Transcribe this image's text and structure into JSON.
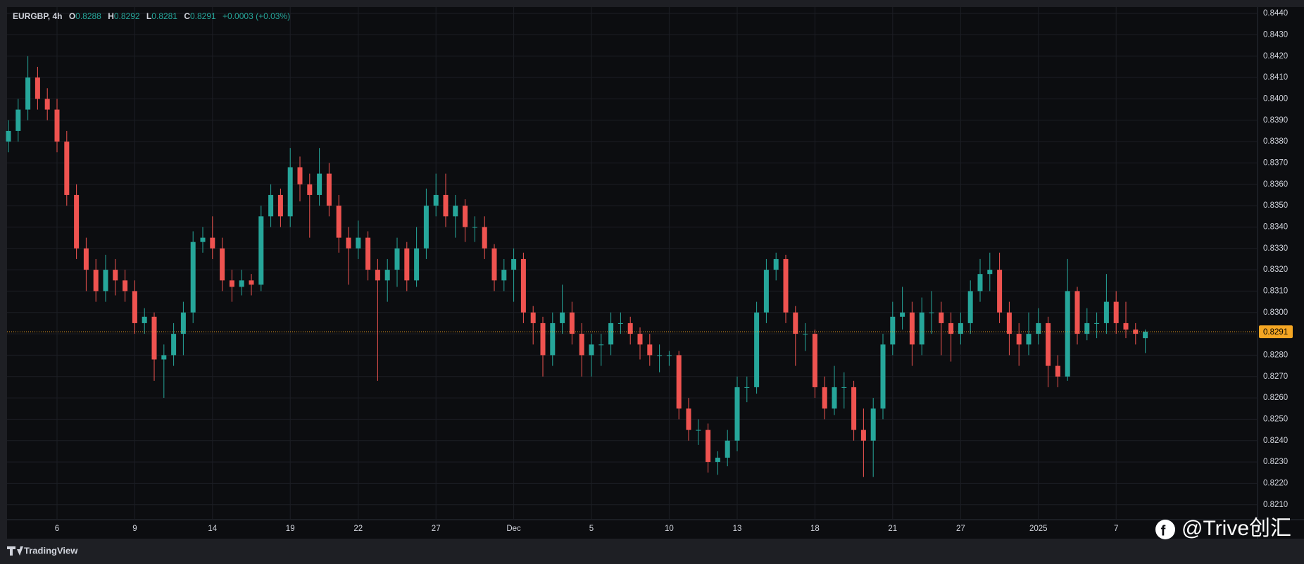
{
  "chart_data": {
    "type": "candlestick",
    "title": "EURGBP, 4h",
    "ohlc": [
      {
        "label": "O",
        "value": 0.8288
      },
      {
        "label": "H",
        "value": 0.8292
      },
      {
        "label": "L",
        "value": 0.8281
      },
      {
        "label": "C",
        "value": 0.8291
      }
    ],
    "change": "+0.0003 (+0.03%)",
    "up_color": "#26a69a",
    "down_color": "#ef5350",
    "grid": true,
    "last_price": 0.8291,
    "last_price_color": "#f5a623",
    "ylim": [
      0.8203,
      0.8443
    ],
    "yticks": [
      {
        "value": 0.821,
        "label": "0.8210"
      },
      {
        "value": 0.822,
        "label": "0.8220"
      },
      {
        "value": 0.823,
        "label": "0.8230"
      },
      {
        "value": 0.824,
        "label": "0.8240"
      },
      {
        "value": 0.825,
        "label": "0.8250"
      },
      {
        "value": 0.826,
        "label": "0.8260"
      },
      {
        "value": 0.827,
        "label": "0.8270"
      },
      {
        "value": 0.828,
        "label": "0.8280"
      },
      {
        "value": 0.829,
        "label": "0.8290"
      },
      {
        "value": 0.83,
        "label": "0.8300"
      },
      {
        "value": 0.831,
        "label": "0.8310"
      },
      {
        "value": 0.832,
        "label": "0.8320"
      },
      {
        "value": 0.833,
        "label": "0.8330"
      },
      {
        "value": 0.834,
        "label": "0.8340"
      },
      {
        "value": 0.835,
        "label": "0.8350"
      },
      {
        "value": 0.836,
        "label": "0.8360"
      },
      {
        "value": 0.837,
        "label": "0.8370"
      },
      {
        "value": 0.838,
        "label": "0.8380"
      },
      {
        "value": 0.839,
        "label": "0.8390"
      },
      {
        "value": 0.84,
        "label": "0.8400"
      },
      {
        "value": 0.841,
        "label": "0.8410"
      },
      {
        "value": 0.842,
        "label": "0.8420"
      },
      {
        "value": 0.843,
        "label": "0.8430"
      },
      {
        "value": 0.844,
        "label": "0.8440"
      }
    ],
    "xticks": [
      {
        "value": 5,
        "label": "6"
      },
      {
        "value": 13,
        "label": "9"
      },
      {
        "value": 21,
        "label": "14"
      },
      {
        "value": 29,
        "label": "19"
      },
      {
        "value": 36,
        "label": "22"
      },
      {
        "value": 44,
        "label": "27"
      },
      {
        "value": 52,
        "label": "Dec"
      },
      {
        "value": 60,
        "label": "5"
      },
      {
        "value": 68,
        "label": "10"
      },
      {
        "value": 75,
        "label": "13"
      },
      {
        "value": 83,
        "label": "18"
      },
      {
        "value": 91,
        "label": "21"
      },
      {
        "value": 98,
        "label": "27"
      },
      {
        "value": 106,
        "label": "2025"
      },
      {
        "value": 114,
        "label": "7"
      }
    ],
    "open": [
      0.838,
      0.8385,
      0.8395,
      0.841,
      0.84,
      0.8395,
      0.838,
      0.8355,
      0.833,
      0.832,
      0.831,
      0.832,
      0.8315,
      0.831,
      0.8295,
      0.8298,
      0.8278,
      0.828,
      0.829,
      0.83,
      0.8333,
      0.8335,
      0.833,
      0.8315,
      0.8312,
      0.8315,
      0.8313,
      0.8345,
      0.8355,
      0.8345,
      0.8368,
      0.836,
      0.8355,
      0.8365,
      0.835,
      0.8335,
      0.833,
      0.8335,
      0.832,
      0.8315,
      0.832,
      0.833,
      0.8315,
      0.833,
      0.835,
      0.8355,
      0.8345,
      0.835,
      0.834,
      0.834,
      0.833,
      0.8315,
      0.832,
      0.8325,
      0.83,
      0.8295,
      0.828,
      0.8295,
      0.83,
      0.829,
      0.828,
      0.8285,
      0.8285,
      0.8295,
      0.8295,
      0.829,
      0.8285,
      0.828,
      0.828,
      0.828,
      0.8255,
      0.8245,
      0.8245,
      0.823,
      0.8232,
      0.824,
      0.8265,
      0.8265,
      0.83,
      0.832,
      0.8325,
      0.83,
      0.829,
      0.829,
      0.8265,
      0.8255,
      0.8265,
      0.8265,
      0.8245,
      0.824,
      0.8255,
      0.8285,
      0.8298,
      0.83,
      0.8285,
      0.83,
      0.83,
      0.8295,
      0.829,
      0.8295,
      0.831,
      0.8318,
      0.832,
      0.83,
      0.829,
      0.8285,
      0.829,
      0.8295,
      0.8275,
      0.827,
      0.831,
      0.829,
      0.8295,
      0.8295,
      0.8305,
      0.8295,
      0.8292,
      0.8288
    ],
    "high": [
      0.839,
      0.84,
      0.842,
      0.8415,
      0.8405,
      0.84,
      0.8385,
      0.836,
      0.8335,
      0.8325,
      0.8327,
      0.8325,
      0.832,
      0.8315,
      0.8302,
      0.83,
      0.8285,
      0.8295,
      0.8305,
      0.8338,
      0.834,
      0.8345,
      0.8335,
      0.832,
      0.832,
      0.8318,
      0.835,
      0.836,
      0.8358,
      0.8377,
      0.8373,
      0.8365,
      0.8377,
      0.837,
      0.8355,
      0.834,
      0.8343,
      0.8338,
      0.8325,
      0.8325,
      0.8335,
      0.8333,
      0.834,
      0.8358,
      0.8365,
      0.8365,
      0.8355,
      0.8353,
      0.8345,
      0.8345,
      0.8332,
      0.8325,
      0.833,
      0.8328,
      0.8303,
      0.8298,
      0.83,
      0.8313,
      0.8305,
      0.8295,
      0.829,
      0.829,
      0.83,
      0.83,
      0.8298,
      0.8293,
      0.829,
      0.8285,
      0.8282,
      0.8282,
      0.826,
      0.825,
      0.8248,
      0.8235,
      0.8245,
      0.827,
      0.827,
      0.8305,
      0.8325,
      0.8328,
      0.8327,
      0.8303,
      0.8295,
      0.8292,
      0.827,
      0.8275,
      0.8272,
      0.8268,
      0.8255,
      0.826,
      0.829,
      0.8305,
      0.8312,
      0.8305,
      0.8307,
      0.831,
      0.8305,
      0.83,
      0.83,
      0.8315,
      0.8325,
      0.8328,
      0.8328,
      0.8305,
      0.8295,
      0.83,
      0.8302,
      0.8298,
      0.828,
      0.8325,
      0.8312,
      0.8302,
      0.83,
      0.8318,
      0.831,
      0.8305,
      0.8295,
      0.8292
    ],
    "low": [
      0.8375,
      0.838,
      0.839,
      0.8395,
      0.839,
      0.8375,
      0.835,
      0.8325,
      0.831,
      0.8305,
      0.8305,
      0.8308,
      0.8305,
      0.829,
      0.829,
      0.8268,
      0.826,
      0.8275,
      0.828,
      0.8295,
      0.8328,
      0.8325,
      0.831,
      0.8305,
      0.8308,
      0.8308,
      0.831,
      0.834,
      0.834,
      0.834,
      0.8352,
      0.8335,
      0.835,
      0.8345,
      0.8328,
      0.8313,
      0.8325,
      0.8315,
      0.8268,
      0.8305,
      0.8312,
      0.831,
      0.8312,
      0.8325,
      0.8345,
      0.834,
      0.8335,
      0.8333,
      0.8333,
      0.8325,
      0.831,
      0.831,
      0.8305,
      0.8295,
      0.8285,
      0.827,
      0.8275,
      0.829,
      0.8285,
      0.827,
      0.827,
      0.8275,
      0.828,
      0.829,
      0.8285,
      0.8278,
      0.8275,
      0.8272,
      0.8275,
      0.825,
      0.824,
      0.8238,
      0.8225,
      0.8224,
      0.8228,
      0.8235,
      0.8258,
      0.8262,
      0.8295,
      0.8315,
      0.8295,
      0.8275,
      0.8282,
      0.826,
      0.825,
      0.8252,
      0.8255,
      0.824,
      0.8223,
      0.8223,
      0.825,
      0.828,
      0.8292,
      0.8275,
      0.828,
      0.829,
      0.828,
      0.8277,
      0.8285,
      0.829,
      0.8305,
      0.831,
      0.8295,
      0.828,
      0.8275,
      0.828,
      0.8285,
      0.8265,
      0.8265,
      0.8268,
      0.8285,
      0.8287,
      0.8288,
      0.829,
      0.829,
      0.8288,
      0.8285,
      0.8281
    ],
    "close": [
      0.8385,
      0.8395,
      0.841,
      0.84,
      0.8395,
      0.838,
      0.8355,
      0.833,
      0.832,
      0.831,
      0.832,
      0.8315,
      0.831,
      0.8295,
      0.8298,
      0.8278,
      0.828,
      0.829,
      0.83,
      0.8333,
      0.8335,
      0.833,
      0.8315,
      0.8312,
      0.8315,
      0.8313,
      0.8345,
      0.8355,
      0.8345,
      0.8368,
      0.836,
      0.8355,
      0.8365,
      0.835,
      0.8335,
      0.833,
      0.8335,
      0.832,
      0.8315,
      0.832,
      0.833,
      0.8315,
      0.833,
      0.835,
      0.8355,
      0.8345,
      0.835,
      0.834,
      0.834,
      0.833,
      0.8315,
      0.832,
      0.8325,
      0.83,
      0.8295,
      0.828,
      0.8295,
      0.83,
      0.829,
      0.828,
      0.8285,
      0.8285,
      0.8295,
      0.8295,
      0.829,
      0.8285,
      0.828,
      0.828,
      0.828,
      0.8255,
      0.8245,
      0.8245,
      0.823,
      0.8232,
      0.824,
      0.8265,
      0.8265,
      0.83,
      0.832,
      0.8325,
      0.83,
      0.829,
      0.829,
      0.8265,
      0.8255,
      0.8265,
      0.8265,
      0.8245,
      0.824,
      0.8255,
      0.8285,
      0.8298,
      0.83,
      0.8285,
      0.83,
      0.83,
      0.8295,
      0.829,
      0.8295,
      0.831,
      0.8318,
      0.832,
      0.83,
      0.829,
      0.8285,
      0.829,
      0.8295,
      0.8275,
      0.827,
      0.831,
      0.829,
      0.8295,
      0.8295,
      0.8305,
      0.8295,
      0.8292,
      0.829,
      0.8291
    ]
  },
  "watermark": "@Trive创汇",
  "brand": "TradingView"
}
